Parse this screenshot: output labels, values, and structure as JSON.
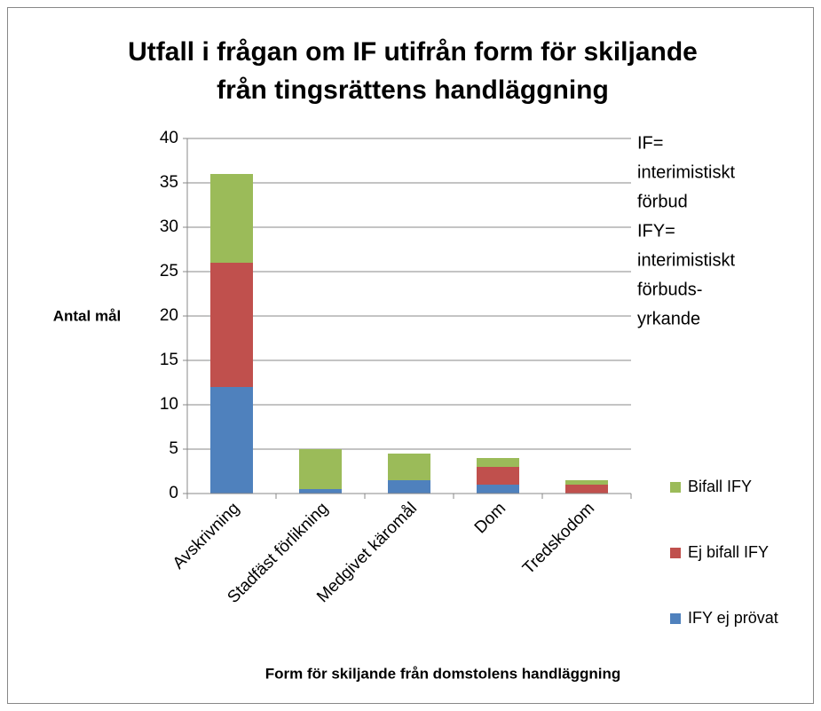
{
  "chart_data": {
    "type": "stacked_bar",
    "title": [
      "Utfall i frågan om IF utifrån form för skiljande",
      "från tingsrättens handläggning"
    ],
    "annotation": [
      "IF=",
      "interimistiskt",
      "förbud",
      "IFY=",
      "interimistiskt",
      "förbuds-",
      "yrkande"
    ],
    "y_label": "Antal mål",
    "x_label": "Form för skiljande från domstolens handläggning",
    "categories": [
      "Avskrivning",
      "Stadfäst förlikning",
      "Medgivet käromål",
      "Dom",
      "Tredskodom"
    ],
    "series": [
      {
        "name": "IFY ej prövat",
        "color": "#4f81bd",
        "values": [
          12,
          0.5,
          1.5,
          1,
          0
        ]
      },
      {
        "name": "Ej bifall IFY",
        "color": "#c0504d",
        "values": [
          14,
          0,
          0,
          2,
          1
        ]
      },
      {
        "name": "Bifall IFY",
        "color": "#9bbb59",
        "values": [
          10,
          4.5,
          3,
          1,
          0.5
        ]
      }
    ],
    "ylim": [
      0,
      40
    ],
    "yticks": [
      0,
      5,
      10,
      15,
      20,
      25,
      30,
      35,
      40
    ],
    "grid": true,
    "legend": "right"
  }
}
